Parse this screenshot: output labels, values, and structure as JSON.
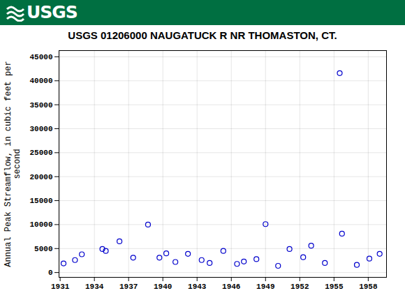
{
  "chart_data": {
    "type": "scatter",
    "logo_text": "USGS",
    "title": "USGS 01206000 NAUGATUCK R NR THOMASTON, CT.",
    "y_label": "Annual Peak Streamflow, in cubic feet per second",
    "x": [
      1931.3,
      1932.3,
      1932.9,
      1934.7,
      1935.0,
      1936.2,
      1937.4,
      1938.7,
      1939.7,
      1940.3,
      1941.1,
      1942.2,
      1943.4,
      1944.1,
      1945.3,
      1946.5,
      1947.1,
      1948.2,
      1949.0,
      1950.1,
      1951.1,
      1952.3,
      1953.0,
      1954.2,
      1955.5,
      1955.7,
      1957.0,
      1958.1,
      1959.0
    ],
    "values": [
      1900,
      2600,
      3800,
      4900,
      4500,
      6500,
      3100,
      10000,
      3100,
      4000,
      2200,
      3900,
      2600,
      2000,
      4500,
      1800,
      2300,
      2800,
      10100,
      1400,
      4900,
      3200,
      5600,
      2000,
      41600,
      8100,
      1600,
      2900,
      3900
    ],
    "color": "#0000cc",
    "marker": "open_circle",
    "xlim": [
      1930.9,
      1959.6
    ],
    "xticks": [
      1931,
      1934,
      1937,
      1940,
      1943,
      1946,
      1949,
      1952,
      1955,
      1958
    ],
    "ylim": [
      -1000,
      46300
    ],
    "yticks": [
      0,
      5000,
      10000,
      15000,
      20000,
      25000,
      30000,
      35000,
      40000,
      45000
    ],
    "grid": true
  }
}
